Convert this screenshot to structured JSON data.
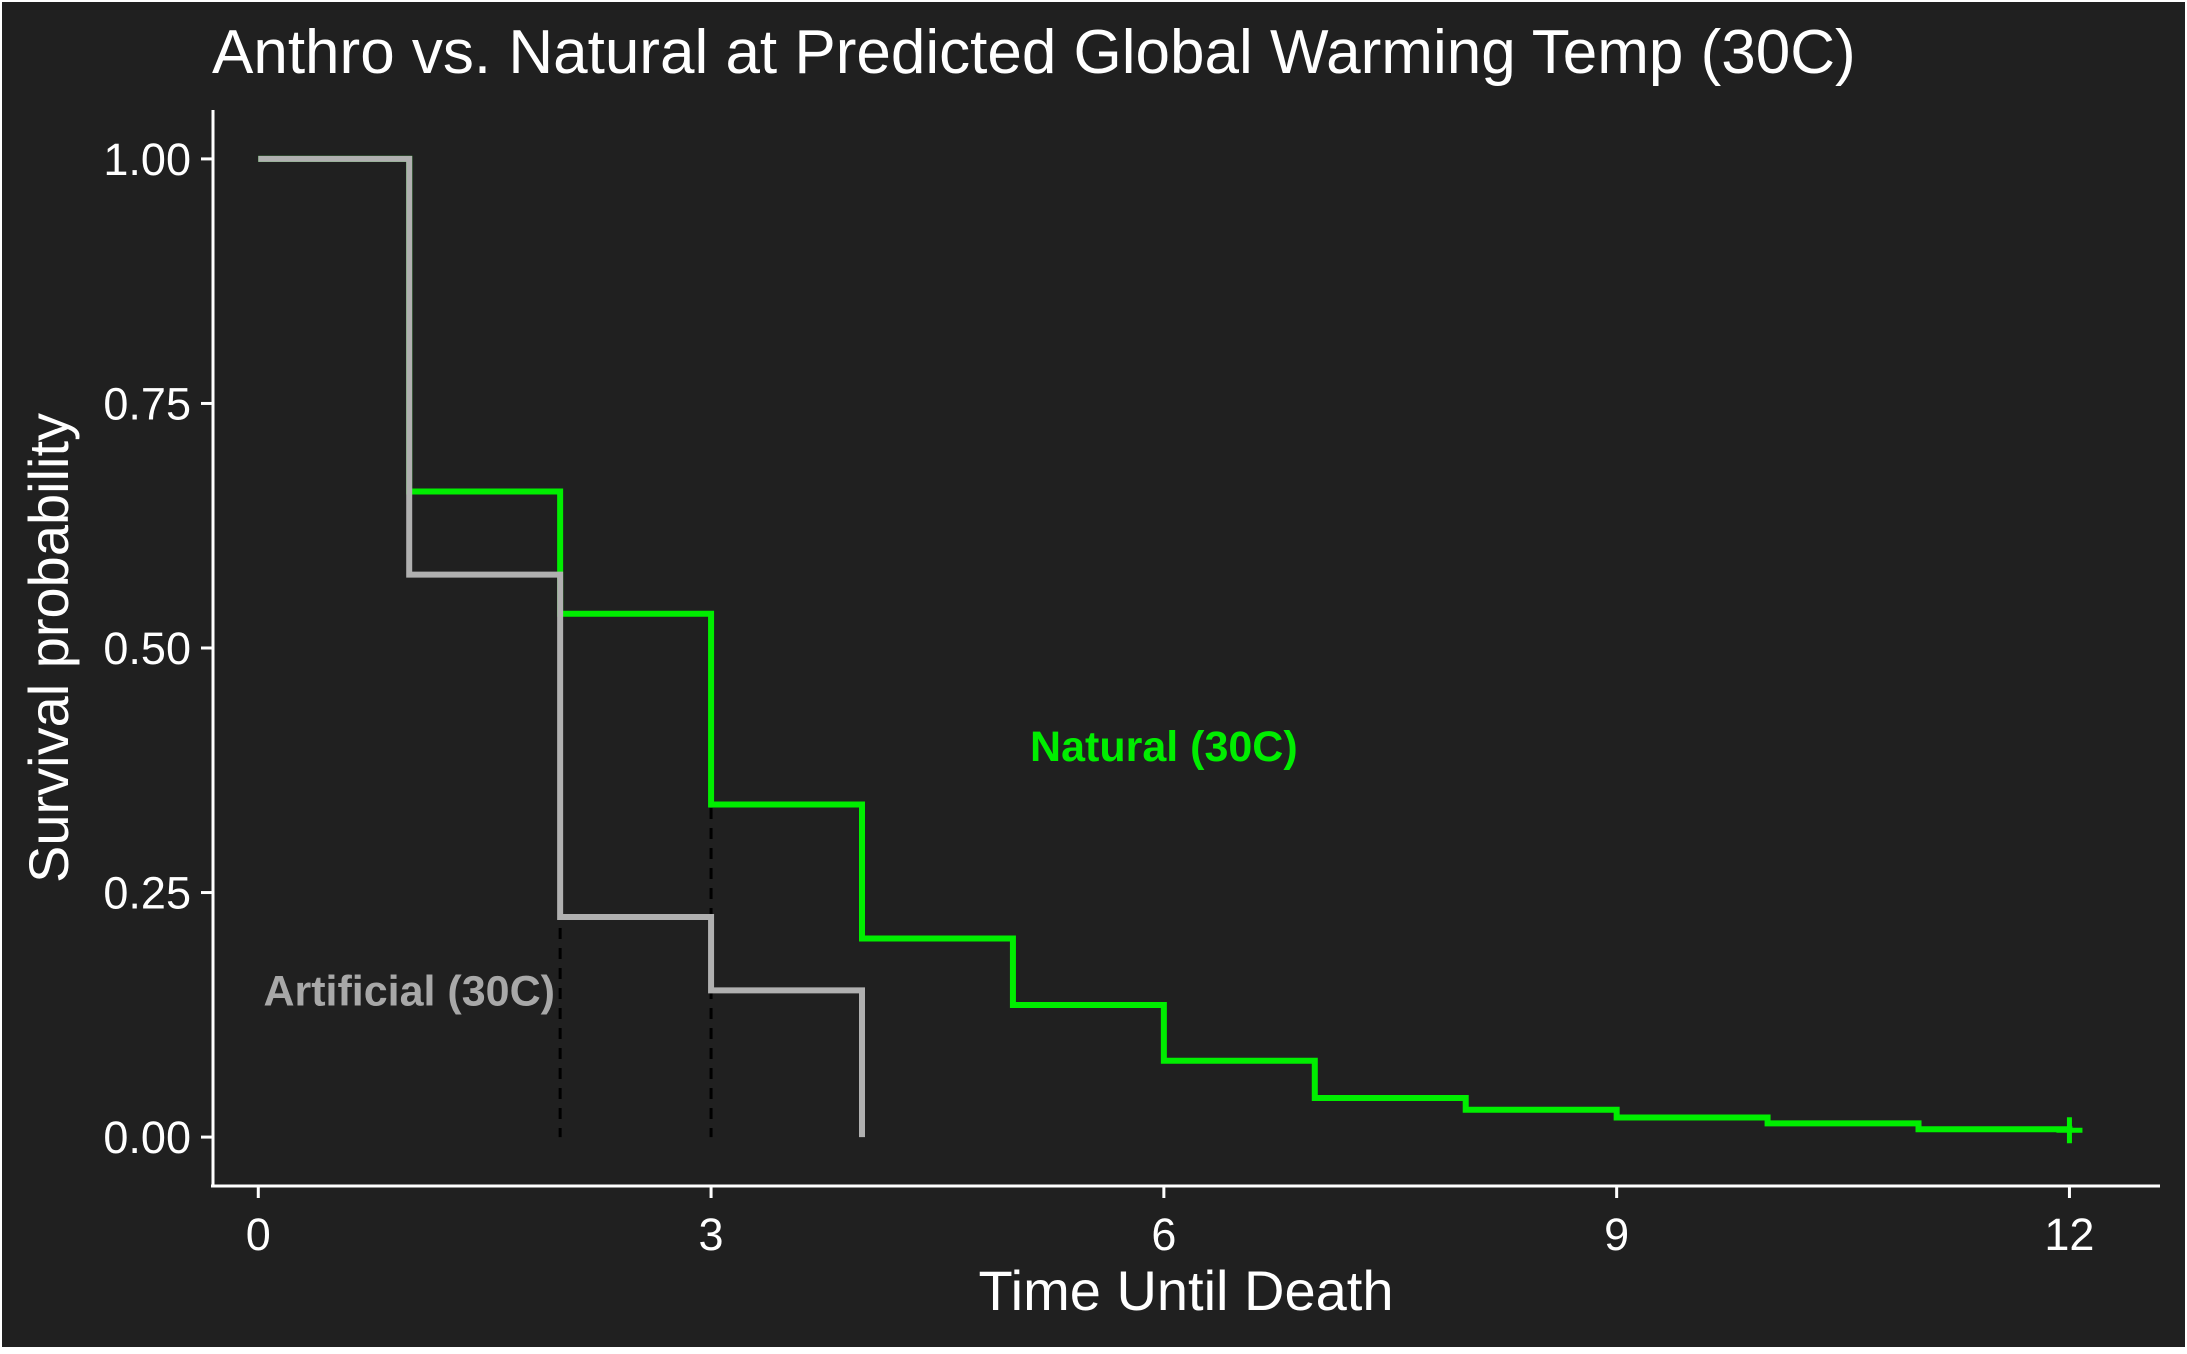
{
  "chart_data": {
    "type": "line",
    "title": "Anthro vs. Natural at Predicted Global Warming Temp (30C)",
    "xlabel": "Time Until Death",
    "ylabel": "Survival probability",
    "xlim": [
      -0.3,
      12.6
    ],
    "ylim": [
      -0.05,
      1.05
    ],
    "xticks": [
      0,
      3,
      6,
      9,
      12
    ],
    "xtick_labels": [
      "0",
      "3",
      "6",
      "9",
      "12"
    ],
    "yticks": [
      0,
      0.25,
      0.5,
      0.75,
      1.0
    ],
    "ytick_labels": [
      "0.00",
      "0.25",
      "0.50",
      "0.75",
      "1.00"
    ],
    "grid": false,
    "legend": "none",
    "background": "#202020",
    "series": [
      {
        "name": "Natural (30C)",
        "color": "#00ee00",
        "step": true,
        "x": [
          0,
          1,
          2,
          3,
          4,
          5,
          6,
          7,
          8,
          9,
          10,
          11,
          12
        ],
        "y": [
          1.0,
          0.66,
          0.535,
          0.34,
          0.203,
          0.135,
          0.078,
          0.04,
          0.028,
          0.02,
          0.014,
          0.008,
          0.007
        ]
      },
      {
        "name": "Artificial (30C)",
        "color": "#b0b0b0",
        "step": true,
        "x": [
          0,
          1,
          2,
          3,
          4
        ],
        "y": [
          1.0,
          0.575,
          0.225,
          0.15,
          0.0
        ]
      }
    ],
    "censor_marks": [
      {
        "series": "Natural (30C)",
        "x": 12,
        "y": 0.007,
        "symbol": "+"
      }
    ],
    "median_lines": [
      {
        "x": 2,
        "y": 0.5
      },
      {
        "x": 3,
        "y": 0.5
      }
    ],
    "annotations": [
      {
        "text": "Natural (30C)",
        "x": 6.0,
        "y": 0.4,
        "color": "#00ee00"
      },
      {
        "text": "Artificial (30C)",
        "x": 1.0,
        "y": 0.15,
        "color": "#a8a8a8"
      }
    ]
  }
}
